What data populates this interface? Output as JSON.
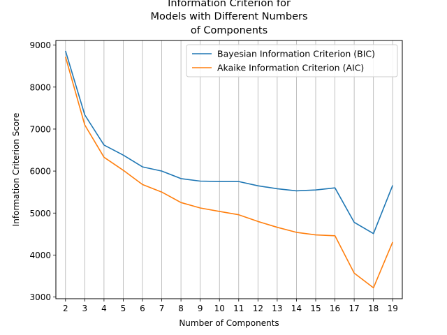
{
  "chart_data": {
    "type": "line",
    "title": [
      "Information Criterion for",
      "Models with Different Numbers",
      "of Components"
    ],
    "xlabel": "Number of Components",
    "ylabel": "Information Criterion Score",
    "x": [
      2,
      3,
      4,
      5,
      6,
      7,
      8,
      9,
      10,
      11,
      12,
      13,
      14,
      15,
      16,
      17,
      18,
      19
    ],
    "xlim": [
      1.5,
      19.5
    ],
    "ylim": [
      2960,
      9110
    ],
    "yticks": [
      3000,
      4000,
      5000,
      6000,
      7000,
      8000,
      9000
    ],
    "grid": "vertical",
    "legend_position": "top-right",
    "series": [
      {
        "name": "Bayesian Information Criterion (BIC)",
        "color": "#1f77b4",
        "values": [
          8860,
          7340,
          6620,
          6380,
          6100,
          6000,
          5820,
          5760,
          5750,
          5750,
          5650,
          5580,
          5530,
          5550,
          5600,
          4780,
          4510,
          5660
        ]
      },
      {
        "name": "Akaike Information Criterion (AIC)",
        "color": "#ff7f0e",
        "values": [
          8720,
          7100,
          6330,
          6020,
          5680,
          5500,
          5250,
          5120,
          5040,
          4960,
          4800,
          4660,
          4540,
          4480,
          4460,
          3570,
          3220,
          4310
        ]
      }
    ]
  }
}
